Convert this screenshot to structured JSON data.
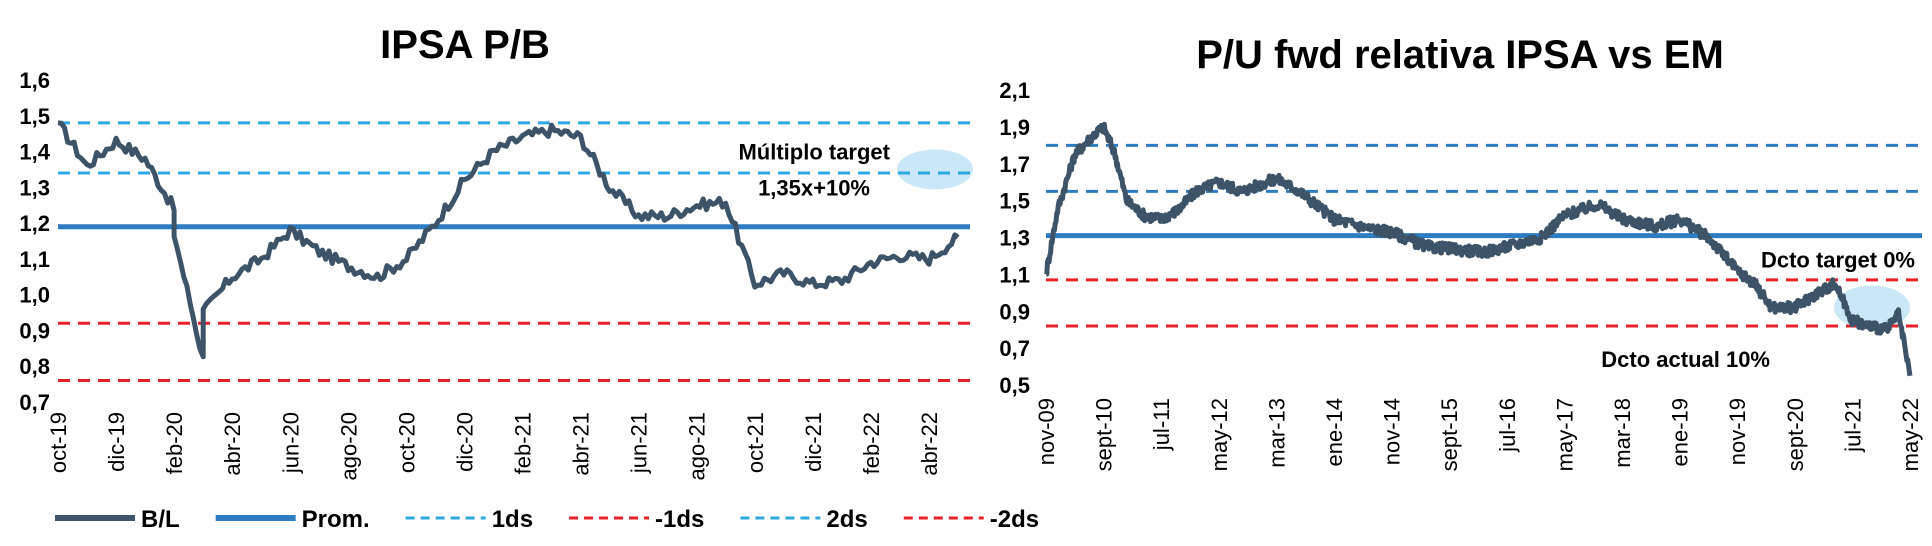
{
  "chart_data": [
    {
      "type": "line",
      "title": "IPSA  P/B",
      "ylim": [
        0.7,
        1.6
      ],
      "yticks": [
        "1,6",
        "1,5",
        "1,4",
        "1,3",
        "1,2",
        "1,1",
        "1,0",
        "0,9",
        "0,8",
        "0,7"
      ],
      "ytick_values": [
        1.6,
        1.5,
        1.4,
        1.3,
        1.2,
        1.1,
        1.0,
        0.9,
        0.8,
        0.7
      ],
      "xticks": [
        "oct-19",
        "dic-19",
        "feb-20",
        "abr-20",
        "jun-20",
        "ago-20",
        "oct-20",
        "dic-20",
        "feb-21",
        "abr-21",
        "jun-21",
        "ago-21",
        "oct-21",
        "dic-21",
        "feb-22",
        "abr-22"
      ],
      "x_range": [
        "oct-19",
        "may-22"
      ],
      "grid": false,
      "series": [
        {
          "name": "B/L",
          "color": "#3d5468",
          "style": "solid",
          "points": [
            [
              "oct-19",
              1.48
            ],
            [
              "nov-19",
              1.36
            ],
            [
              "dic-19",
              1.43
            ],
            [
              "ene-20",
              1.38
            ],
            [
              "feb-20",
              1.24
            ],
            [
              "feb-20",
              1.17
            ],
            [
              "mar-20",
              0.82
            ],
            [
              "mar-20",
              0.95
            ],
            [
              "abr-20",
              1.05
            ],
            [
              "may-20",
              1.1
            ],
            [
              "jun-20",
              1.18
            ],
            [
              "jul-20",
              1.12
            ],
            [
              "ago-20",
              1.08
            ],
            [
              "sep-20",
              1.05
            ],
            [
              "oct-20",
              1.1
            ],
            [
              "nov-20",
              1.2
            ],
            [
              "dic-20",
              1.32
            ],
            [
              "ene-21",
              1.4
            ],
            [
              "feb-21",
              1.44
            ],
            [
              "mar-21",
              1.46
            ],
            [
              "abr-21",
              1.44
            ],
            [
              "may-21",
              1.3
            ],
            [
              "jun-21",
              1.22
            ],
            [
              "jul-21",
              1.22
            ],
            [
              "ago-21",
              1.25
            ],
            [
              "sep-21",
              1.26
            ],
            [
              "oct-21",
              1.03
            ],
            [
              "nov-21",
              1.06
            ],
            [
              "dic-21",
              1.03
            ],
            [
              "ene-22",
              1.04
            ],
            [
              "feb-22",
              1.09
            ],
            [
              "mar-22",
              1.11
            ],
            [
              "abr-22",
              1.1
            ],
            [
              "may-22",
              1.16
            ]
          ]
        },
        {
          "name": "Prom.",
          "color": "#2e7dc2",
          "style": "solid",
          "constant": 1.19
        },
        {
          "name": "1ds",
          "color": "#2ea8e0",
          "style": "dashed",
          "constant": 1.34
        },
        {
          "name": "-1ds",
          "color": "#e8202a",
          "style": "dashed",
          "constant": 0.92
        },
        {
          "name": "2ds",
          "color": "#2ea8e0",
          "style": "dashed",
          "constant": 1.48
        },
        {
          "name": "-2ds",
          "color": "#e8202a",
          "style": "dashed",
          "constant": 0.76
        }
      ],
      "annotations": [
        {
          "text": "Múltiplo target",
          "attach": "right-margin, y=1.40"
        },
        {
          "text": "1,35x+10%",
          "attach": "right-margin, y=1.30"
        }
      ],
      "highlight": {
        "shape": "ellipse",
        "color": "#bfe3f5",
        "near_value": 1.35,
        "attach": "right edge"
      },
      "legend_placement": "bottom"
    },
    {
      "type": "line",
      "title": "P/U fwd relativa IPSA vs EM",
      "ylim": [
        0.5,
        2.1
      ],
      "yticks": [
        "2,1",
        "1,9",
        "1,7",
        "1,5",
        "1,3",
        "1,1",
        "0,9",
        "0,7",
        "0,5"
      ],
      "ytick_values": [
        2.1,
        1.9,
        1.7,
        1.5,
        1.3,
        1.1,
        0.9,
        0.7,
        0.5
      ],
      "xticks": [
        "nov-09",
        "sept-10",
        "jul-11",
        "may-12",
        "mar-13",
        "ene-14",
        "nov-14",
        "sept-15",
        "jul-16",
        "may-17",
        "mar-18",
        "ene-19",
        "nov-19",
        "sept-20",
        "jul-21",
        "may-22"
      ],
      "x_range": [
        "nov-09",
        "may-22"
      ],
      "grid": false,
      "series": [
        {
          "name": "P/U fwd relativa",
          "color": "#3d5468",
          "style": "solid",
          "points": [
            [
              "nov-09",
              1.1
            ],
            [
              "ene-10",
              1.45
            ],
            [
              "abr-10",
              1.75
            ],
            [
              "jul-10",
              1.85
            ],
            [
              "sept-10",
              1.9
            ],
            [
              "nov-10",
              1.75
            ],
            [
              "ene-11",
              1.5
            ],
            [
              "abr-11",
              1.42
            ],
            [
              "jul-11",
              1.4
            ],
            [
              "oct-11",
              1.45
            ],
            [
              "ene-12",
              1.55
            ],
            [
              "may-12",
              1.6
            ],
            [
              "sept-12",
              1.55
            ],
            [
              "mar-13",
              1.62
            ],
            [
              "jul-13",
              1.55
            ],
            [
              "ene-14",
              1.4
            ],
            [
              "jul-14",
              1.35
            ],
            [
              "nov-14",
              1.33
            ],
            [
              "may-15",
              1.25
            ],
            [
              "sept-15",
              1.24
            ],
            [
              "mar-16",
              1.22
            ],
            [
              "jul-16",
              1.25
            ],
            [
              "ene-17",
              1.3
            ],
            [
              "may-17",
              1.42
            ],
            [
              "nov-17",
              1.48
            ],
            [
              "mar-18",
              1.4
            ],
            [
              "sept-18",
              1.36
            ],
            [
              "ene-19",
              1.4
            ],
            [
              "jun-19",
              1.3
            ],
            [
              "nov-19",
              1.12
            ],
            [
              "feb-20",
              1.05
            ],
            [
              "may-20",
              0.92
            ],
            [
              "sept-20",
              0.92
            ],
            [
              "ene-21",
              1.0
            ],
            [
              "abr-21",
              1.05
            ],
            [
              "jul-21",
              0.85
            ],
            [
              "oct-21",
              0.82
            ],
            [
              "ene-22",
              0.8
            ],
            [
              "mar-22",
              0.88
            ],
            [
              "may-22",
              0.55
            ]
          ]
        },
        {
          "name": "Prom.",
          "color": "#2e7dc2",
          "style": "solid",
          "constant": 1.31
        },
        {
          "name": "1ds",
          "color": "#2e7dc2",
          "style": "dashed",
          "constant": 1.55
        },
        {
          "name": "2ds",
          "color": "#2e7dc2",
          "style": "dashed",
          "constant": 1.8
        },
        {
          "name": "-1ds",
          "color": "#e8202a",
          "style": "dashed",
          "constant": 1.07
        },
        {
          "name": "-2ds",
          "color": "#e8202a",
          "style": "dashed",
          "constant": 0.82
        }
      ],
      "annotations": [
        {
          "text": "Dcto target 0%",
          "attach": "right-margin, y=1.18"
        },
        {
          "text": "Dcto actual 10%",
          "attach": "right-margin, y=0.64"
        }
      ],
      "highlight": {
        "shape": "ellipse",
        "color": "#bfe3f5",
        "near_value": 0.92,
        "attach": "right edge"
      }
    }
  ],
  "legend": [
    {
      "label": "B/L",
      "color": "#3d5468",
      "style": "solid"
    },
    {
      "label": "Prom.",
      "color": "#2e7dc2",
      "style": "solid"
    },
    {
      "label": "1ds",
      "color": "#2ea8e0",
      "style": "dashed"
    },
    {
      "label": "-1ds",
      "color": "#e8202a",
      "style": "dashed"
    },
    {
      "label": "2ds",
      "color": "#2ea8e0",
      "style": "dashed"
    },
    {
      "label": "-2ds",
      "color": "#e8202a",
      "style": "dashed"
    }
  ]
}
